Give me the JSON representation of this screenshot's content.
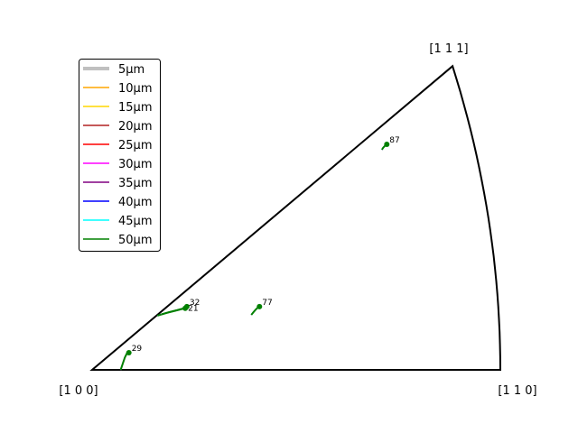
{
  "chart_data": {
    "type": "scatter",
    "description_type": "inverse-pole-figure",
    "title": "",
    "corners": [
      {
        "label": "[1 0 0]",
        "pos": [
          0,
          0
        ]
      },
      {
        "label": "[1 1 0]",
        "pos": [
          1,
          0
        ]
      },
      {
        "label": "[1 1 1]",
        "pos": [
          0.883,
          0.745
        ]
      }
    ],
    "legend": {
      "placement": "top-left",
      "entries": [
        {
          "name": "5µm",
          "color": "#c0c0c0",
          "width": 4
        },
        {
          "name": "10µm",
          "color": "#ffa500",
          "width": 1.5
        },
        {
          "name": "15µm",
          "color": "#ffd700",
          "width": 1.5
        },
        {
          "name": "20µm",
          "color": "#b22222",
          "width": 1.5
        },
        {
          "name": "25µm",
          "color": "#ff0000",
          "width": 1.5
        },
        {
          "name": "30µm",
          "color": "#ff00ff",
          "width": 1.5
        },
        {
          "name": "35µm",
          "color": "#800080",
          "width": 1.5
        },
        {
          "name": "40µm",
          "color": "#0000ff",
          "width": 1.5
        },
        {
          "name": "45µm",
          "color": "#00ffff",
          "width": 1.5
        },
        {
          "name": "50µm",
          "color": "#008000",
          "width": 1.5
        }
      ]
    },
    "grains": [
      {
        "label": "87",
        "points": [
          [
            0.71,
            0.54
          ],
          [
            0.713,
            0.545
          ],
          [
            0.716,
            0.548
          ],
          [
            0.719,
            0.551
          ],
          [
            0.722,
            0.553
          ]
        ]
      },
      {
        "label": "77",
        "points": [
          [
            0.39,
            0.135
          ],
          [
            0.395,
            0.141
          ],
          [
            0.4,
            0.147
          ],
          [
            0.405,
            0.152
          ],
          [
            0.41,
            0.155
          ]
        ]
      },
      {
        "label": "21",
        "points": [
          [
            0.16,
            0.133
          ],
          [
            0.18,
            0.139
          ],
          [
            0.2,
            0.144
          ],
          [
            0.215,
            0.148
          ],
          [
            0.228,
            0.151
          ]
        ]
      },
      {
        "label": "32",
        "points": [
          [
            0.17,
            0.136
          ],
          [
            0.19,
            0.142
          ],
          [
            0.21,
            0.147
          ],
          [
            0.225,
            0.151
          ],
          [
            0.232,
            0.155
          ]
        ]
      },
      {
        "label": "29",
        "points": [
          [
            0.07,
            0.0
          ],
          [
            0.075,
            0.015
          ],
          [
            0.08,
            0.03
          ],
          [
            0.085,
            0.04
          ],
          [
            0.09,
            0.042
          ]
        ]
      }
    ]
  }
}
